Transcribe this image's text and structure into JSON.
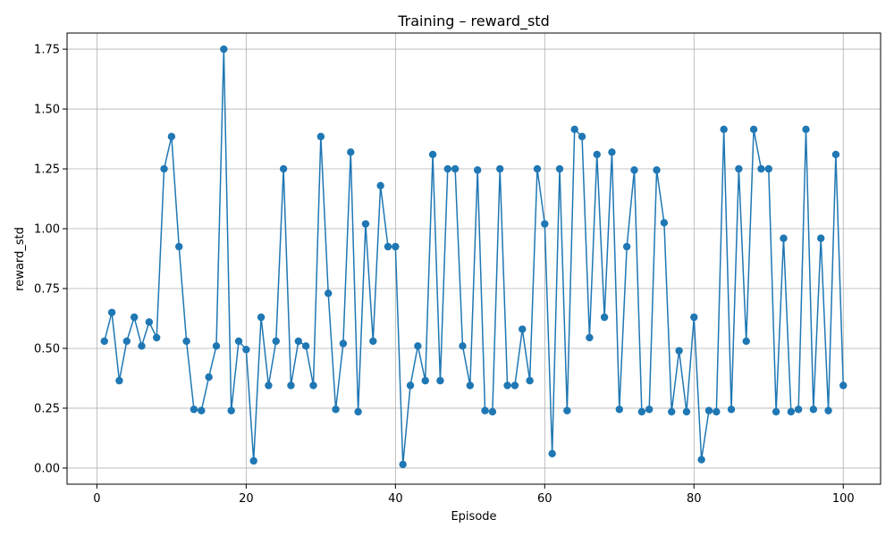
{
  "chart_data": {
    "type": "line",
    "title": "Training – reward_std",
    "xlabel": "Episode",
    "ylabel": "reward_std",
    "xlim": [
      -4,
      105
    ],
    "ylim": [
      -0.0675,
      1.8175
    ],
    "xticks": [
      0,
      20,
      40,
      60,
      80,
      100
    ],
    "xtick_labels": [
      "0",
      "20",
      "40",
      "60",
      "80",
      "100"
    ],
    "yticks": [
      0.0,
      0.25,
      0.5,
      0.75,
      1.0,
      1.25,
      1.5,
      1.75
    ],
    "ytick_labels": [
      "0.00",
      "0.25",
      "0.50",
      "0.75",
      "1.00",
      "1.25",
      "1.50",
      "1.75"
    ],
    "grid": true,
    "series": [
      {
        "color": "#1f77b4",
        "marker": "circle",
        "x": [
          1,
          2,
          3,
          4,
          5,
          6,
          7,
          8,
          9,
          10,
          11,
          12,
          13,
          14,
          15,
          16,
          17,
          18,
          19,
          20,
          21,
          22,
          23,
          24,
          25,
          26,
          27,
          28,
          29,
          30,
          31,
          32,
          33,
          34,
          35,
          36,
          37,
          38,
          39,
          40,
          41,
          42,
          43,
          44,
          45,
          46,
          47,
          48,
          49,
          50,
          51,
          52,
          53,
          54,
          55,
          56,
          57,
          58,
          59,
          60,
          61,
          62,
          63,
          64,
          65,
          66,
          67,
          68,
          69,
          70,
          71,
          72,
          73,
          74,
          75,
          76,
          77,
          78,
          79,
          80,
          81,
          82,
          83,
          84,
          85,
          86,
          87,
          88,
          89,
          90,
          91,
          92,
          93,
          94,
          95,
          96,
          97,
          98,
          99,
          100
        ],
        "y": [
          0.53,
          0.65,
          0.365,
          0.53,
          0.63,
          0.51,
          0.61,
          0.545,
          1.25,
          1.385,
          0.925,
          0.53,
          0.245,
          0.24,
          0.38,
          0.51,
          1.75,
          0.24,
          0.53,
          0.495,
          0.03,
          0.63,
          0.345,
          0.53,
          1.25,
          0.345,
          0.53,
          0.51,
          0.345,
          1.385,
          0.73,
          0.245,
          0.52,
          1.32,
          0.235,
          1.02,
          0.53,
          1.18,
          0.925,
          0.925,
          0.015,
          0.345,
          0.51,
          0.365,
          1.31,
          0.365,
          1.25,
          1.25,
          0.51,
          0.345,
          1.245,
          0.24,
          0.235,
          1.25,
          0.345,
          0.345,
          0.58,
          0.365,
          1.25,
          1.02,
          0.06,
          1.25,
          0.24,
          1.415,
          1.385,
          0.545,
          1.31,
          0.63,
          1.32,
          0.245,
          0.925,
          1.245,
          0.235,
          0.245,
          1.245,
          1.025,
          0.235,
          0.49,
          0.235,
          0.63,
          0.035,
          0.24,
          0.235,
          1.415,
          0.245,
          1.25,
          0.53,
          1.415,
          1.25,
          1.25,
          0.235,
          0.96,
          0.235,
          0.245,
          1.415,
          0.245,
          0.96,
          0.24,
          1.31,
          0.345
        ]
      }
    ]
  }
}
